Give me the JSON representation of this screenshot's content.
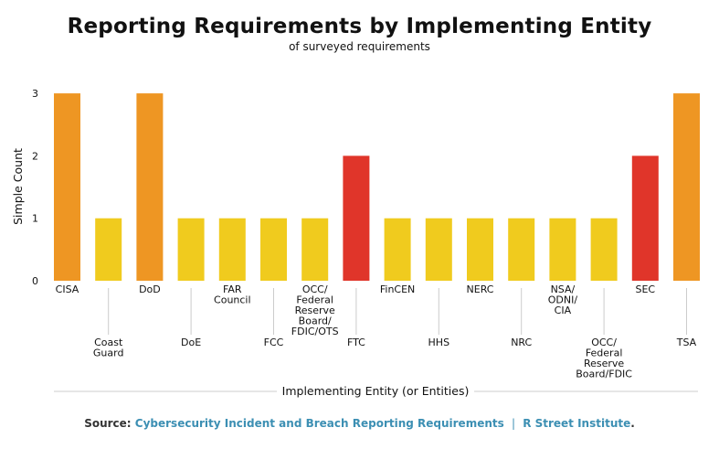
{
  "header": {
    "title": "Reporting Requirements by Implementing Entity",
    "subtitle": "of surveyed requirements"
  },
  "footer": {
    "source_label": "Source:",
    "source_title": "Cybersecurity Incident and Breach Reporting Requirements",
    "separator": "|",
    "source_org": "R Street Institute",
    "end": "."
  },
  "colors": {
    "count_1": "#f0cb1e",
    "count_2": "#e0352a",
    "count_3": "#ee9623",
    "axis": "#cccccc"
  },
  "chart_data": {
    "type": "bar",
    "title": "Reporting Requirements by Implementing Entity",
    "subtitle": "of surveyed requirements",
    "xlabel": "Implementing Entity (or Entities)",
    "ylabel": "Simple Count",
    "ylim": [
      0,
      3
    ],
    "yticks": [
      0,
      1,
      2,
      3
    ],
    "grid": false,
    "legend": "none",
    "categories": [
      [
        "CISA"
      ],
      [
        "Coast",
        "Guard"
      ],
      [
        "DoD"
      ],
      [
        "DoE"
      ],
      [
        "FAR",
        "Council"
      ],
      [
        "FCC"
      ],
      [
        "OCC/",
        "Federal",
        "Reserve",
        "Board/",
        "FDIC/OTS"
      ],
      [
        "FTC"
      ],
      [
        "FinCEN"
      ],
      [
        "HHS"
      ],
      [
        "NERC"
      ],
      [
        "NRC"
      ],
      [
        "NSA/",
        "ODNI/",
        "CIA"
      ],
      [
        "OCC/",
        "Federal",
        "Reserve",
        "Board/FDIC"
      ],
      [
        "SEC"
      ],
      [
        "TSA"
      ]
    ],
    "values": [
      3,
      1,
      3,
      1,
      1,
      1,
      1,
      2,
      1,
      1,
      1,
      1,
      1,
      1,
      2,
      3
    ]
  }
}
